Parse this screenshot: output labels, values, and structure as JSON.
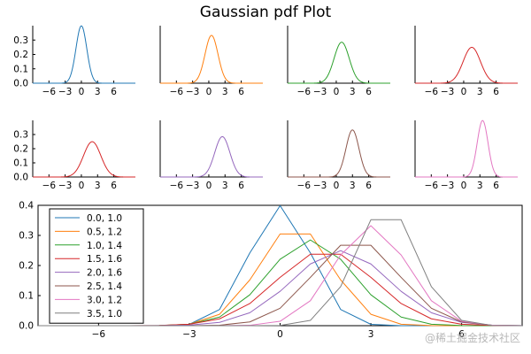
{
  "figure": {
    "title": "Gaussian pdf Plot",
    "watermark": "@稀土掘金技术社区"
  },
  "chart_data": [
    {
      "type": "line",
      "panel": "small-1",
      "series": [
        {
          "mu": 0.0,
          "sigma": 1.0,
          "color": "#1f77b4"
        }
      ],
      "xlim": [
        -9,
        10
      ],
      "ylim": [
        0,
        0.4
      ],
      "xticks": [
        -6,
        -3,
        0,
        3,
        6
      ],
      "yticks": [
        0.0,
        0.1,
        0.2,
        0.3
      ],
      "grid": false
    },
    {
      "type": "line",
      "panel": "small-2",
      "series": [
        {
          "mu": 0.5,
          "sigma": 1.2,
          "color": "#ff7f0e"
        }
      ],
      "xlim": [
        -9,
        10
      ],
      "ylim": [
        0,
        0.4
      ],
      "xticks": [
        -6,
        -3,
        0,
        3,
        6
      ],
      "grid": false
    },
    {
      "type": "line",
      "panel": "small-3",
      "series": [
        {
          "mu": 1.0,
          "sigma": 1.4,
          "color": "#2ca02c"
        }
      ],
      "xlim": [
        -9,
        10
      ],
      "ylim": [
        0,
        0.4
      ],
      "xticks": [
        -6,
        -3,
        0,
        3,
        6
      ],
      "grid": false
    },
    {
      "type": "line",
      "panel": "small-4",
      "series": [
        {
          "mu": 1.5,
          "sigma": 1.6,
          "color": "#d62728"
        }
      ],
      "xlim": [
        -9,
        10
      ],
      "ylim": [
        0,
        0.4
      ],
      "xticks": [
        -6,
        -3,
        0,
        3,
        6
      ],
      "grid": false
    },
    {
      "type": "line",
      "panel": "small-5",
      "series": [
        {
          "mu": 2.0,
          "sigma": 1.6,
          "color": "#d62728"
        }
      ],
      "xlim": [
        -9,
        10
      ],
      "ylim": [
        0,
        0.4
      ],
      "xticks": [
        -6,
        -3,
        0,
        3,
        6
      ],
      "yticks": [
        0.0,
        0.1,
        0.2,
        0.3
      ],
      "grid": false
    },
    {
      "type": "line",
      "panel": "small-6",
      "series": [
        {
          "mu": 2.5,
          "sigma": 1.4,
          "color": "#9467bd"
        }
      ],
      "xlim": [
        -9,
        10
      ],
      "ylim": [
        0,
        0.4
      ],
      "xticks": [
        -6,
        -3,
        0,
        3,
        6
      ],
      "grid": false
    },
    {
      "type": "line",
      "panel": "small-7",
      "series": [
        {
          "mu": 3.0,
          "sigma": 1.2,
          "color": "#8c564b"
        }
      ],
      "xlim": [
        -9,
        10
      ],
      "ylim": [
        0,
        0.4
      ],
      "xticks": [
        -6,
        -3,
        0,
        3,
        6
      ],
      "grid": false
    },
    {
      "type": "line",
      "panel": "small-8",
      "series": [
        {
          "mu": 3.5,
          "sigma": 1.0,
          "color": "#e377c2"
        }
      ],
      "xlim": [
        -9,
        10
      ],
      "ylim": [
        0,
        0.4
      ],
      "xticks": [
        -6,
        -3,
        0,
        3,
        6
      ],
      "grid": false
    },
    {
      "type": "line",
      "panel": "combined",
      "x_sample": [
        -8,
        -7,
        -6,
        -5,
        -4,
        -3,
        -2,
        -1,
        0,
        1,
        2,
        3,
        4,
        5,
        6,
        7,
        8
      ],
      "series": [
        {
          "name": "0.0, 1.0",
          "mu": 0.0,
          "sigma": 1.0,
          "color": "#1f77b4"
        },
        {
          "name": "0.5, 1.2",
          "mu": 0.5,
          "sigma": 1.2,
          "color": "#ff7f0e"
        },
        {
          "name": "1.0, 1.4",
          "mu": 1.0,
          "sigma": 1.4,
          "color": "#2ca02c"
        },
        {
          "name": "1.5, 1.6",
          "mu": 1.5,
          "sigma": 1.6,
          "color": "#d62728"
        },
        {
          "name": "2.0, 1.6",
          "mu": 2.0,
          "sigma": 1.6,
          "color": "#9467bd"
        },
        {
          "name": "2.5, 1.4",
          "mu": 2.5,
          "sigma": 1.4,
          "color": "#8c564b"
        },
        {
          "name": "3.0, 1.2",
          "mu": 3.0,
          "sigma": 1.2,
          "color": "#e377c2"
        },
        {
          "name": "3.5, 1.0",
          "mu": 3.5,
          "sigma": 1.0,
          "color": "#7f7f7f"
        }
      ],
      "xlim": [
        -8,
        8
      ],
      "ylim": [
        0,
        0.4
      ],
      "xticks": [
        -6,
        -3,
        0,
        3,
        6
      ],
      "yticks": [
        0.0,
        0.1,
        0.2,
        0.3,
        0.4
      ],
      "legend": "top-left",
      "grid": false
    }
  ]
}
